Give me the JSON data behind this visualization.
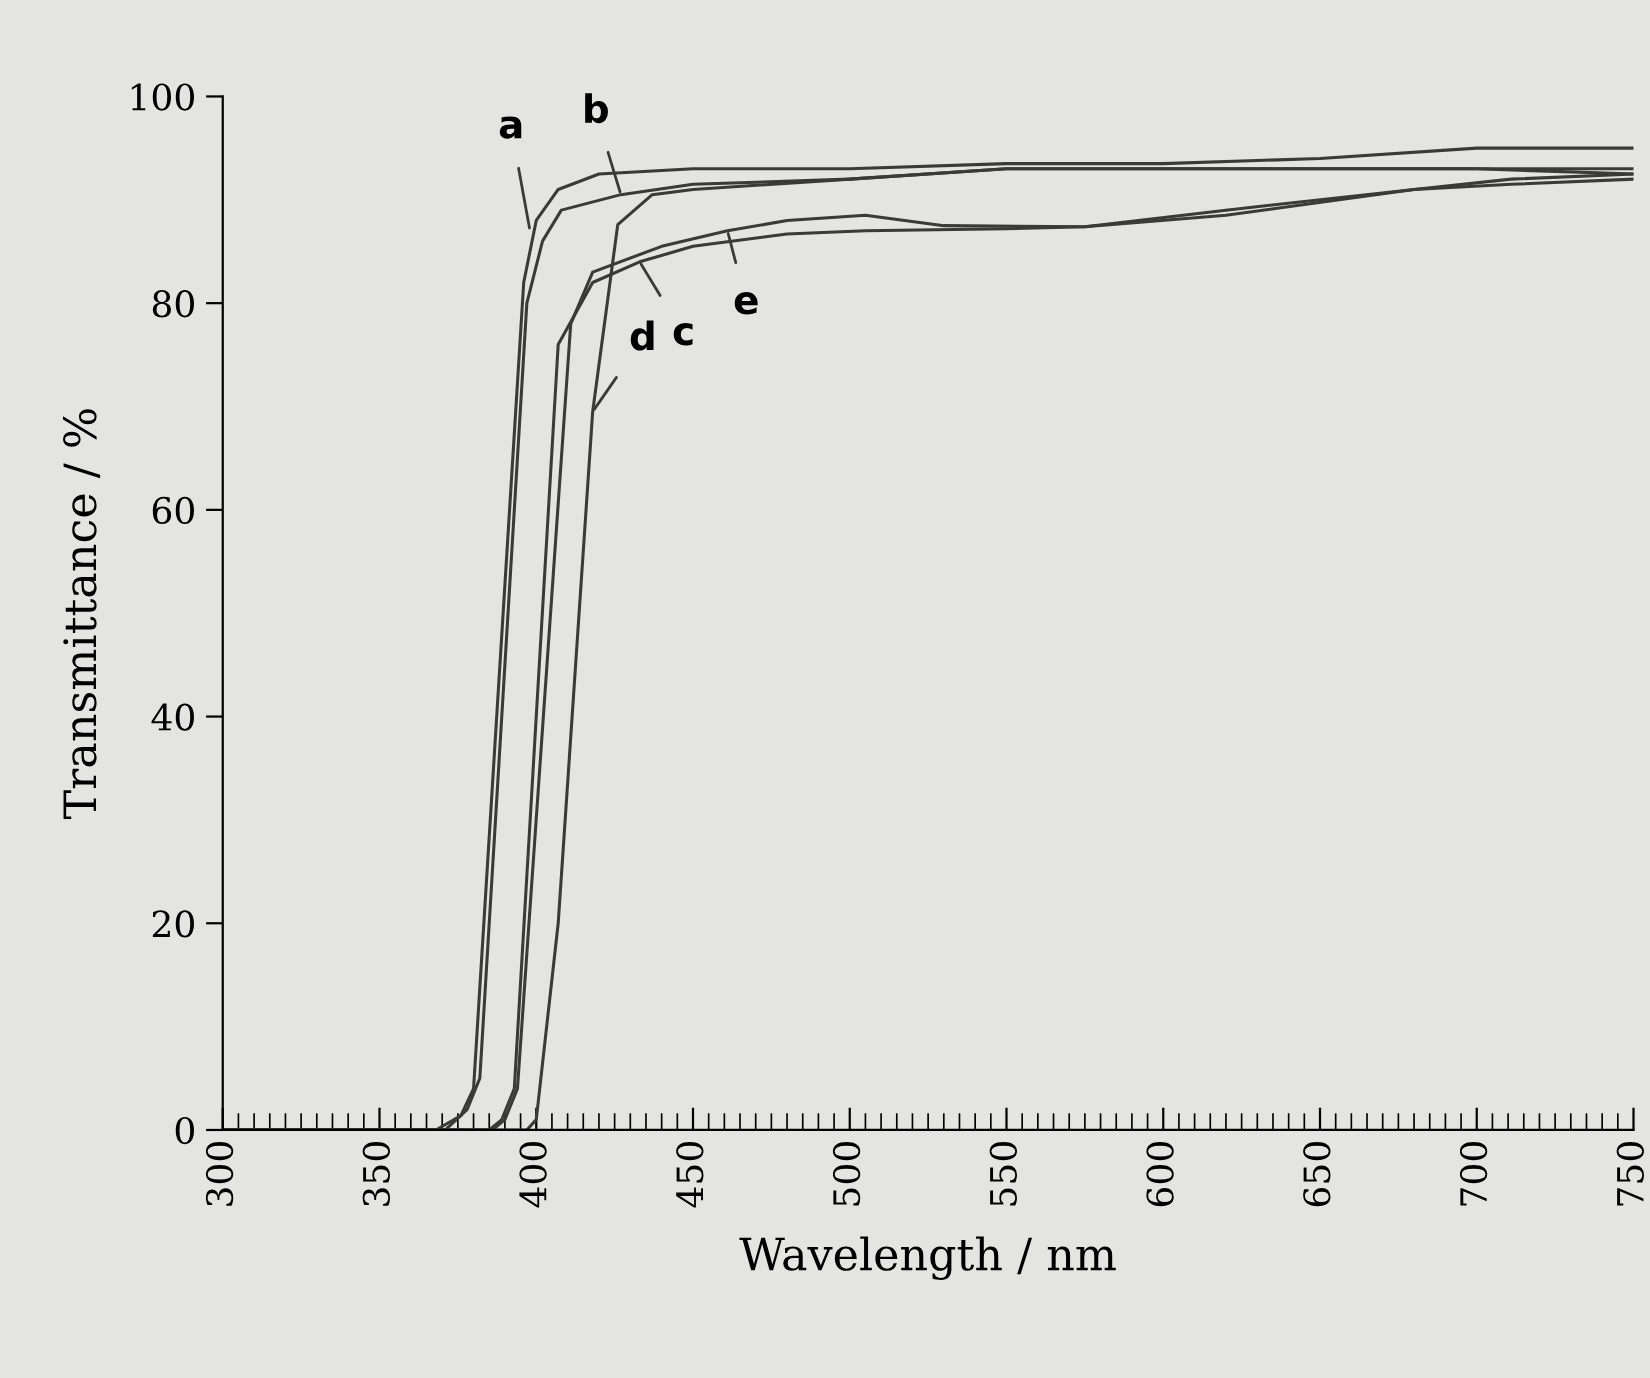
{
  "chart_data": {
    "type": "line",
    "xlabel": "Wavelength / nm",
    "ylabel": "Transmittance / %",
    "xlim": [
      300,
      750
    ],
    "xticks": [
      300,
      350,
      400,
      450,
      500,
      550,
      600,
      650,
      700,
      750
    ],
    "ylim": [
      0,
      100
    ],
    "yticks": [
      0,
      20,
      40,
      60,
      80,
      100
    ],
    "grid": false,
    "legend": false,
    "marker": "none",
    "line_style": "solid",
    "series": [
      {
        "color": "#3a3a3a",
        "x": [
          300,
          368,
          376,
          380,
          396,
          400,
          407,
          420,
          450,
          500,
          550,
          600,
          650,
          700,
          750
        ],
        "values": [
          0,
          0,
          1.4,
          4,
          82,
          88,
          91,
          92.5,
          93,
          93,
          93.5,
          93.5,
          94,
          95,
          95
        ]
      },
      {
        "color": "#3a3a3a",
        "x": [
          300,
          371,
          378,
          382,
          397,
          402,
          408,
          427,
          450,
          500,
          550,
          600,
          650,
          700,
          750
        ],
        "values": [
          0,
          0,
          2,
          5,
          80,
          86,
          89,
          90.5,
          91.5,
          92,
          93,
          93,
          93,
          93,
          93
        ]
      },
      {
        "color": "#3a3a3a",
        "x": [
          300,
          385,
          389,
          393,
          407,
          418,
          433,
          450,
          480,
          505,
          550,
          575,
          620,
          680,
          711,
          750
        ],
        "values": [
          0,
          0,
          1,
          4,
          76,
          82,
          84,
          85.5,
          86.7,
          87,
          87.2,
          87.4,
          89,
          91,
          91.5,
          92
        ]
      },
      {
        "color": "#3a3a3a",
        "x": [
          300,
          397,
          400,
          407,
          418,
          426,
          437,
          450,
          500,
          550,
          600,
          650,
          700,
          750
        ],
        "values": [
          0,
          0,
          1,
          20,
          69.5,
          87.6,
          90.5,
          91,
          92,
          93,
          93,
          93,
          93,
          92.5
        ]
      },
      {
        "color": "#3a3a3a",
        "x": [
          300,
          386,
          390,
          394,
          411,
          418,
          440,
          461,
          480,
          505,
          530,
          575,
          620,
          680,
          711,
          750
        ],
        "values": [
          0,
          0,
          1,
          4,
          78,
          83,
          85.5,
          87,
          88,
          88.5,
          87.5,
          87.4,
          88.5,
          91,
          92,
          92.5
        ]
      }
    ],
    "annotations": [
      {
        "text": "a",
        "x": 398,
        "y": 87
      },
      {
        "text": "b",
        "x": 427,
        "y": 90.5
      },
      {
        "text": "c",
        "x": 433,
        "y": 84
      },
      {
        "text": "d",
        "x": 418,
        "y": 69.5
      },
      {
        "text": "e",
        "x": 461,
        "y": 87
      }
    ]
  }
}
